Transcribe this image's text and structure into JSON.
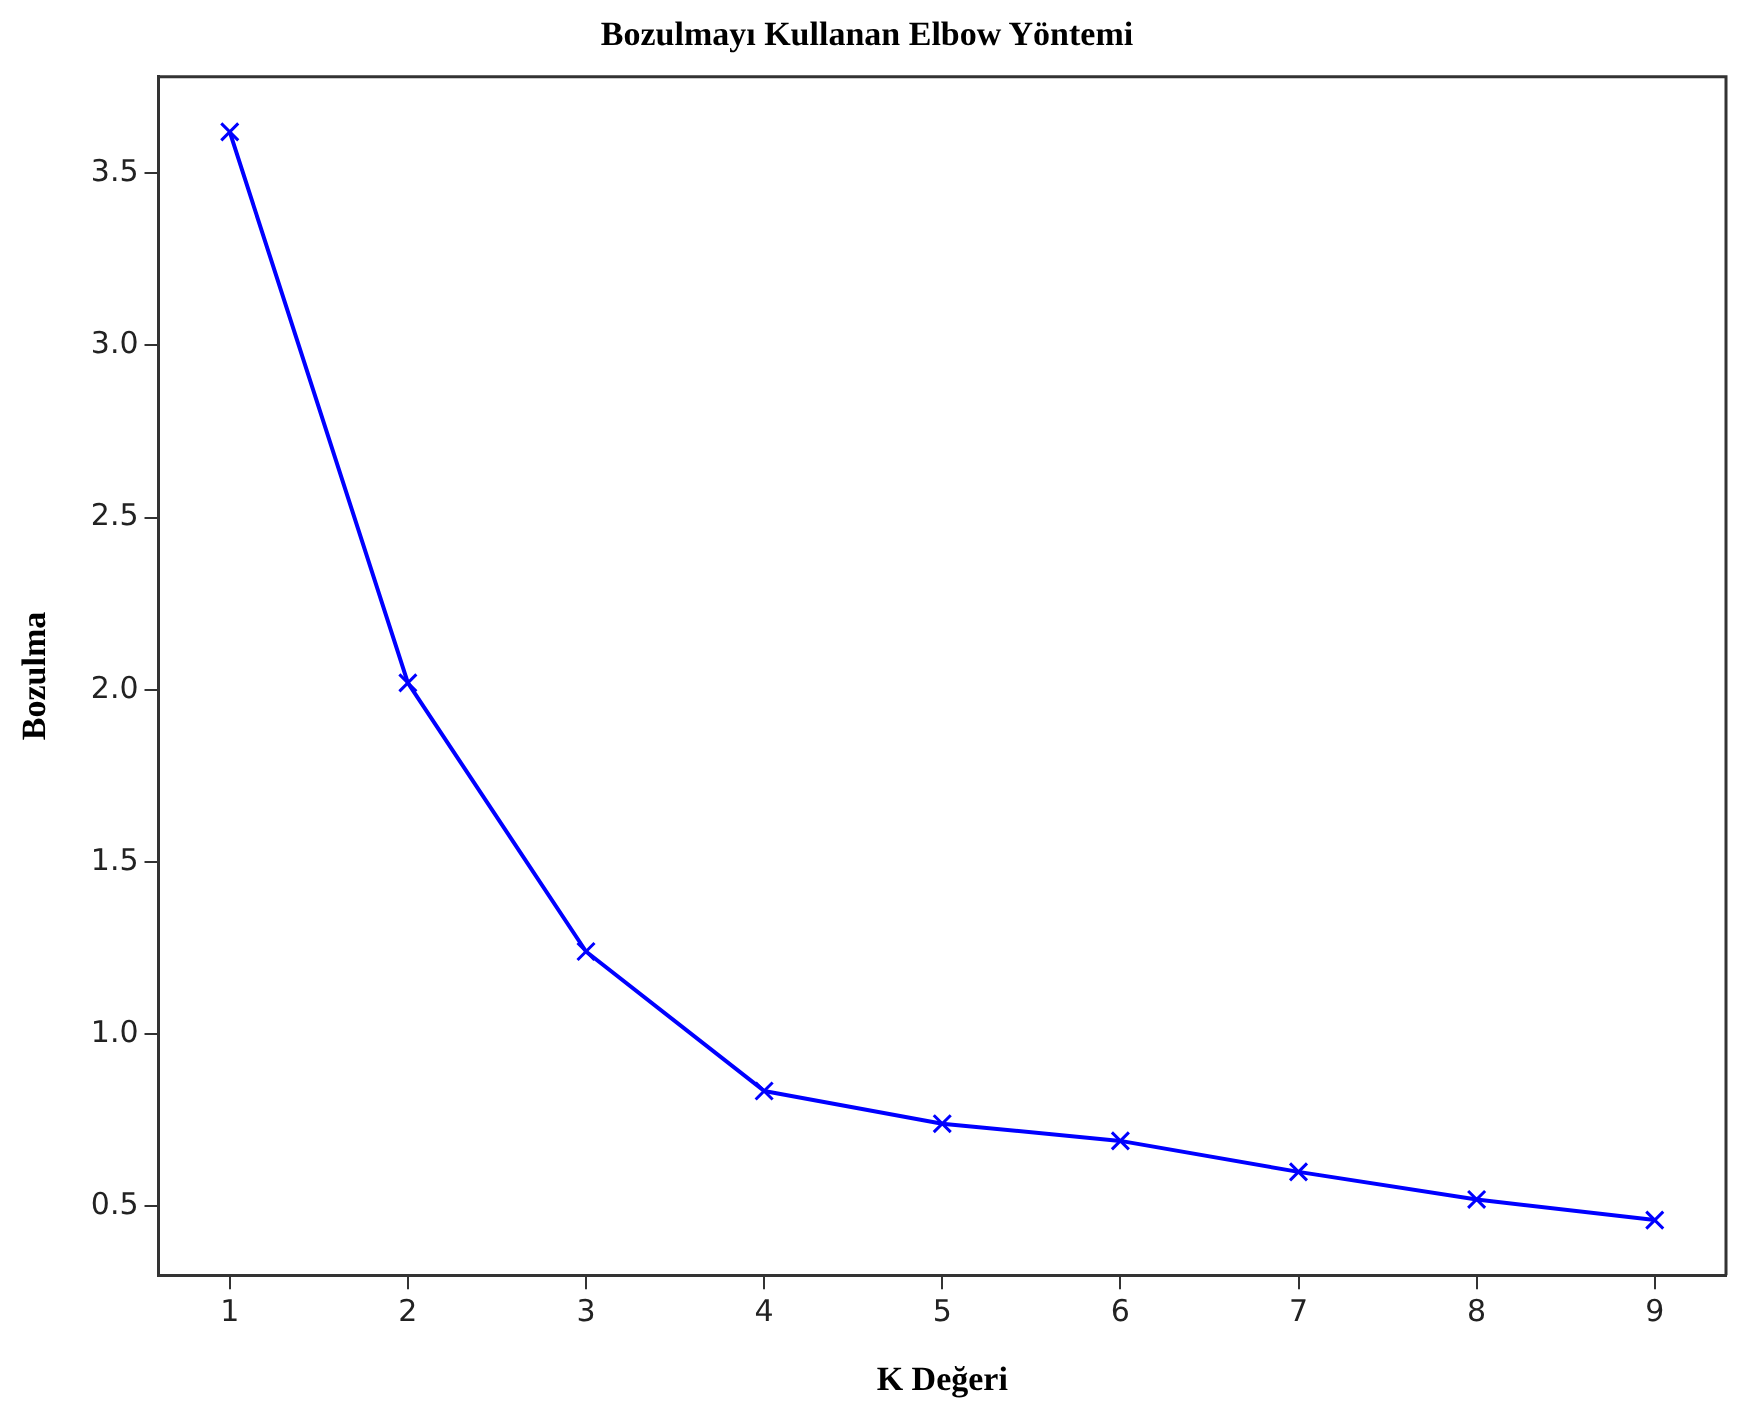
{
  "chart_data": {
    "type": "line",
    "title": "Bozulmayı Kullanan Elbow Yöntemi",
    "xlabel": "K Değeri",
    "ylabel": "Bozulma",
    "x": [
      1,
      2,
      3,
      4,
      5,
      6,
      7,
      8,
      9
    ],
    "series": [
      {
        "color": "#0000ff",
        "values": [
          3.62,
          2.02,
          1.24,
          0.835,
          0.74,
          0.69,
          0.6,
          0.52,
          0.46
        ]
      }
    ],
    "xlim": [
      0.6,
      9.4
    ],
    "ylim": [
      0.3,
      3.78
    ],
    "xticks": [
      1,
      2,
      3,
      4,
      5,
      6,
      7,
      8,
      9
    ],
    "yticks": [
      0.5,
      {
        "value": 1,
        "label": "1.0"
      },
      1.5,
      {
        "value": 2,
        "label": "2.0"
      },
      2.5,
      {
        "value": 3,
        "label": "3.0"
      },
      3.5
    ],
    "grid": false,
    "legend": false,
    "marker": "cross",
    "line_style": "solid"
  }
}
